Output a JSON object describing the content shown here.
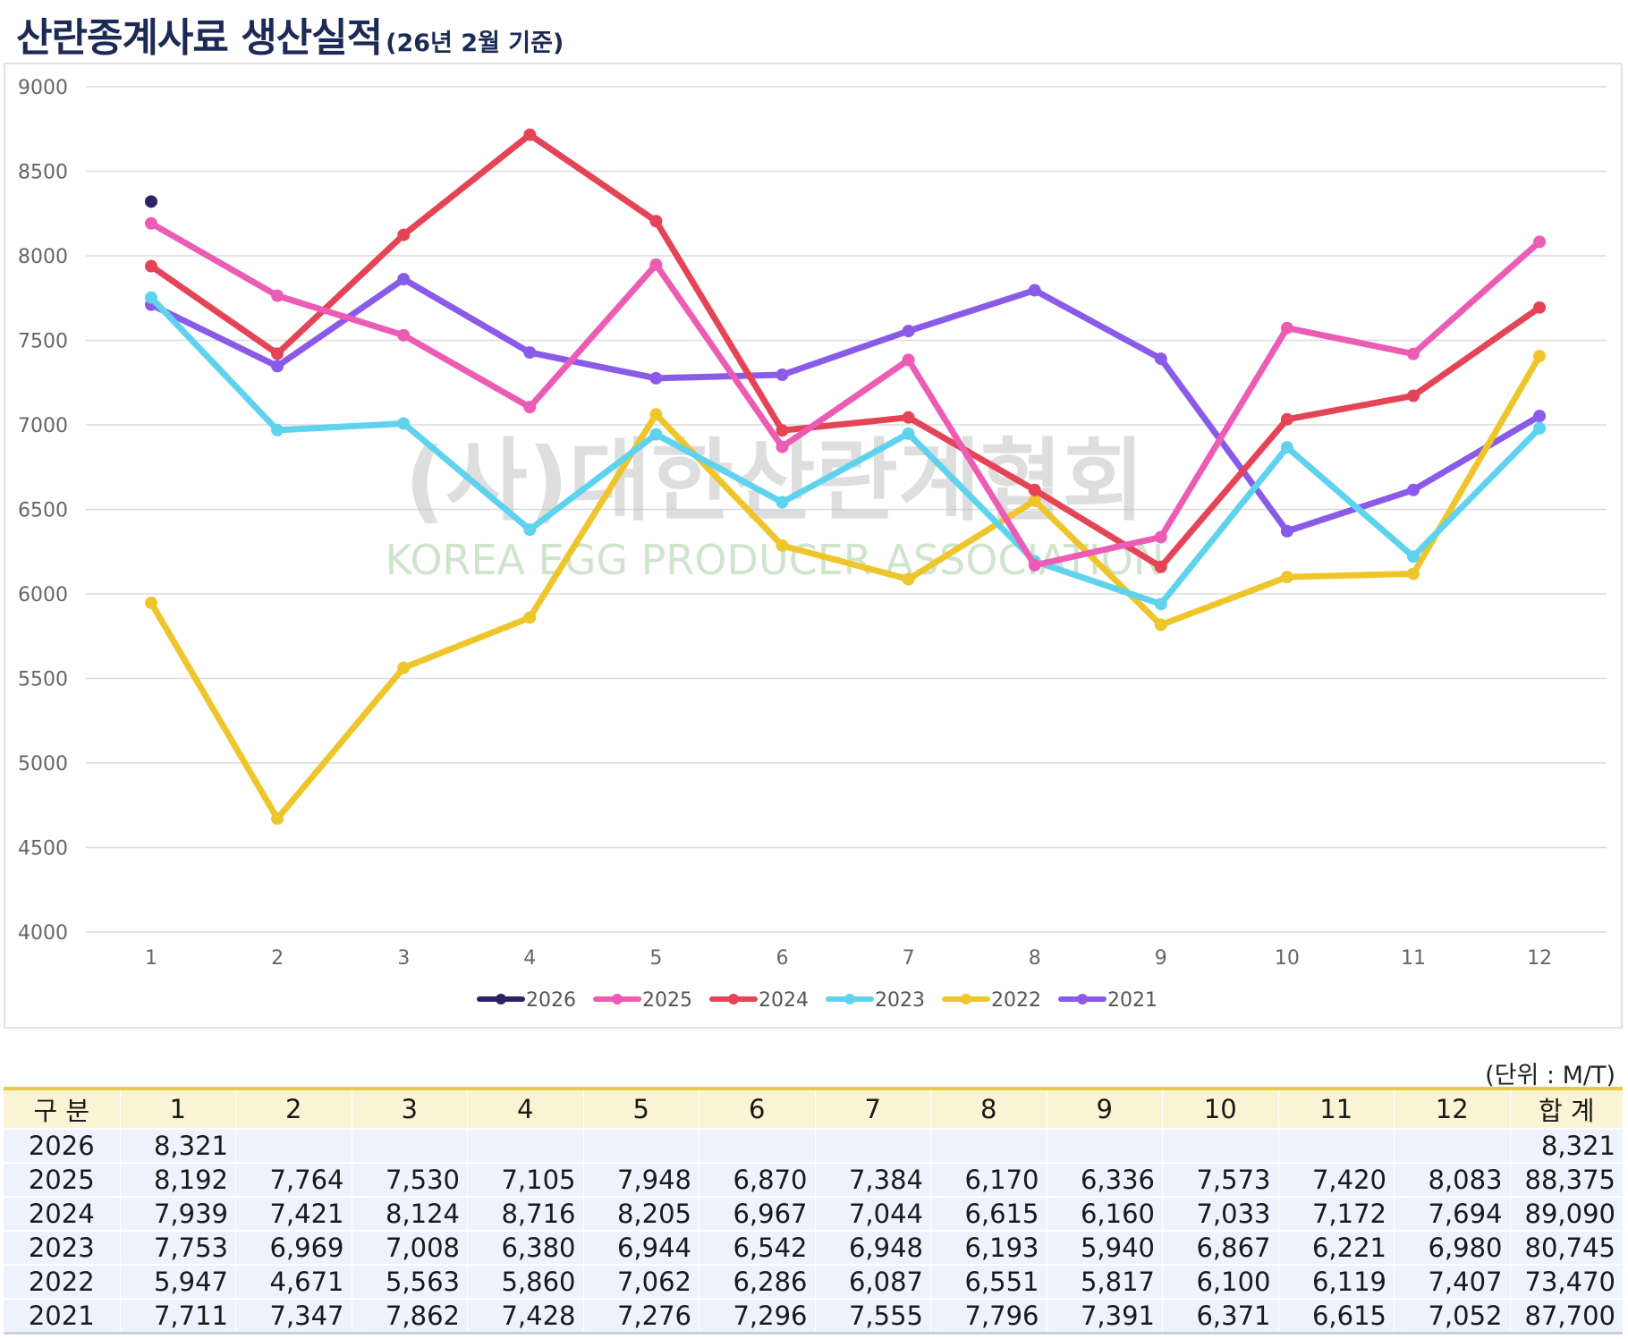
{
  "header": {
    "title": "산란종계사료 생산실적",
    "subtitle": "(26년 2월 기준)"
  },
  "watermark": {
    "line1": "(사)대한산란계협회",
    "line2": "KOREA EGG PRODUCER ASSOCIATION"
  },
  "unit_label": "(단위 : M/T)",
  "table": {
    "headers": [
      "구 분",
      "1",
      "2",
      "3",
      "4",
      "5",
      "6",
      "7",
      "8",
      "9",
      "10",
      "11",
      "12",
      "합 계"
    ],
    "rows": [
      [
        "2026",
        "8,321",
        "",
        "",
        "",
        "",
        "",
        "",
        "",
        "",
        "",
        "",
        "",
        "8,321"
      ],
      [
        "2025",
        "8,192",
        "7,764",
        "7,530",
        "7,105",
        "7,948",
        "6,870",
        "7,384",
        "6,170",
        "6,336",
        "7,573",
        "7,420",
        "8,083",
        "88,375"
      ],
      [
        "2024",
        "7,939",
        "7,421",
        "8,124",
        "8,716",
        "8,205",
        "6,967",
        "7,044",
        "6,615",
        "6,160",
        "7,033",
        "7,172",
        "7,694",
        "89,090"
      ],
      [
        "2023",
        "7,753",
        "6,969",
        "7,008",
        "6,380",
        "6,944",
        "6,542",
        "6,948",
        "6,193",
        "5,940",
        "6,867",
        "6,221",
        "6,980",
        "80,745"
      ],
      [
        "2022",
        "5,947",
        "4,671",
        "5,563",
        "5,860",
        "7,062",
        "6,286",
        "6,087",
        "6,551",
        "5,817",
        "6,100",
        "6,119",
        "7,407",
        "73,470"
      ],
      [
        "2021",
        "7,711",
        "7,347",
        "7,862",
        "7,428",
        "7,276",
        "7,296",
        "7,555",
        "7,796",
        "7,391",
        "6,371",
        "6,615",
        "7,052",
        "87,700"
      ]
    ]
  },
  "chart_data": {
    "type": "line",
    "x": [
      "1",
      "2",
      "3",
      "4",
      "5",
      "6",
      "7",
      "8",
      "9",
      "10",
      "11",
      "12"
    ],
    "ylim": [
      4000,
      9000
    ],
    "yticks": [
      "4000",
      "4500",
      "5000",
      "5500",
      "6000",
      "6500",
      "7000",
      "7500",
      "8000",
      "8500",
      "9000"
    ],
    "grid": true,
    "legend_position": "bottom",
    "series": [
      {
        "name": "2026",
        "color": "#2d2266",
        "values": [
          8321,
          null,
          null,
          null,
          null,
          null,
          null,
          null,
          null,
          null,
          null,
          null
        ]
      },
      {
        "name": "2025",
        "color": "#ec5cb4",
        "values": [
          8192,
          7764,
          7530,
          7105,
          7948,
          6870,
          7384,
          6170,
          6336,
          7573,
          7420,
          8083
        ]
      },
      {
        "name": "2024",
        "color": "#e44455",
        "values": [
          7939,
          7421,
          8124,
          8716,
          8205,
          6967,
          7044,
          6615,
          6160,
          7033,
          7172,
          7694
        ]
      },
      {
        "name": "2023",
        "color": "#5fd3ee",
        "values": [
          7753,
          6969,
          7008,
          6380,
          6944,
          6542,
          6948,
          6193,
          5940,
          6867,
          6221,
          6980
        ]
      },
      {
        "name": "2022",
        "color": "#eec62c",
        "values": [
          5947,
          4671,
          5563,
          5860,
          7062,
          6286,
          6087,
          6551,
          5817,
          6100,
          6119,
          7407
        ]
      },
      {
        "name": "2021",
        "color": "#8a5ae8",
        "values": [
          7711,
          7347,
          7862,
          7428,
          7276,
          7296,
          7555,
          7796,
          7391,
          6371,
          6615,
          7052
        ]
      }
    ]
  }
}
